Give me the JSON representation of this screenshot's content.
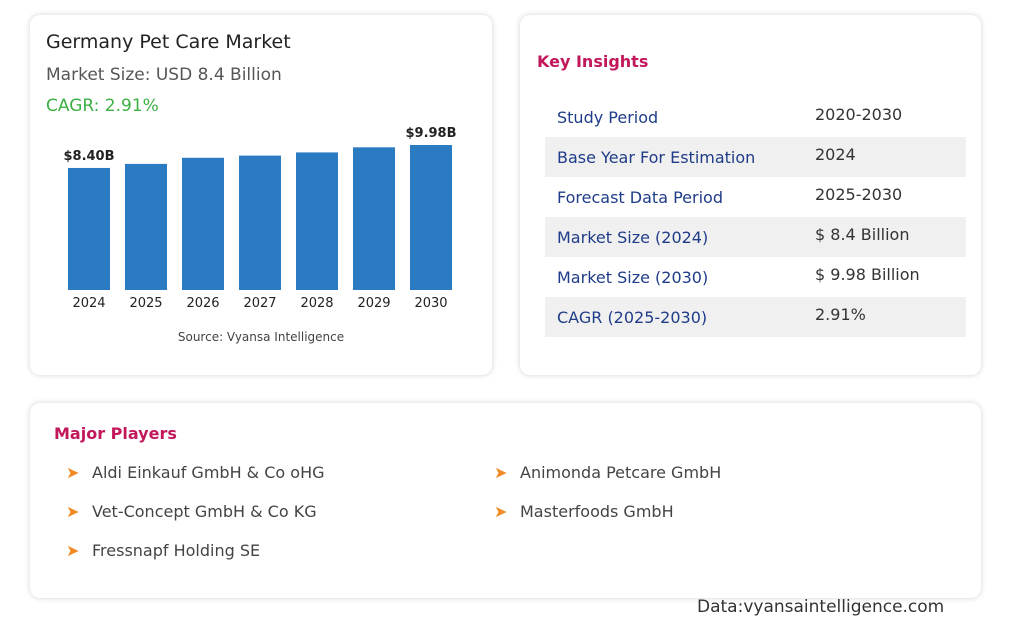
{
  "chart_data": {
    "type": "bar",
    "title": "Germany Pet Care Market",
    "subtitle": "Market Size: USD 8.4 Billion",
    "cagr": "CAGR: 2.91%",
    "categories": [
      "2024",
      "2025",
      "2026",
      "2027",
      "2028",
      "2029",
      "2030"
    ],
    "values": [
      8.4,
      8.68,
      9.1,
      9.25,
      9.47,
      9.82,
      9.98
    ],
    "value_labels": [
      "$8.40B",
      null,
      null,
      null,
      null,
      null,
      "$9.98B"
    ],
    "color": "#2b7bc3",
    "source": "Source: Vyansa Intelligence"
  },
  "insights": {
    "title": "Key Insights",
    "rows": [
      [
        "Study Period",
        "2020-2030"
      ],
      [
        "Base Year For Estimation",
        "2024"
      ],
      [
        "Forecast Data Period",
        "2025-2030"
      ],
      [
        "Market Size (2024)",
        "$ 8.4 Billion"
      ],
      [
        "Market Size (2030)",
        "$ 9.98 Billion"
      ],
      [
        "CAGR (2025-2030)",
        "2.91%"
      ]
    ]
  },
  "players": {
    "title": "Major Players",
    "items": [
      "Aldi Einkauf GmbH & Co oHG",
      "Animonda Petcare GmbH",
      "Vet-Concept GmbH & Co KG",
      "Masterfoods GmbH",
      "Fressnapf Holding SE"
    ]
  },
  "footer": "Data:vyansaintelligence.com"
}
